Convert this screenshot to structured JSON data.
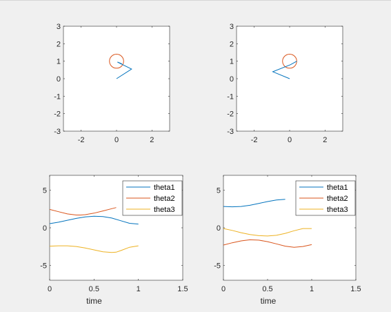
{
  "colors": {
    "figure_bg": "#f0f0f0",
    "axes_bg": "#ffffff",
    "axes_line": "#262626",
    "series_blue": "#0072bd",
    "series_orange": "#d95319",
    "series_yellow": "#edb120"
  },
  "chart_data": [
    {
      "type": "line",
      "title": "",
      "xlabel": "",
      "ylabel": "",
      "xlim": [
        -3,
        3
      ],
      "ylim": [
        -3,
        3
      ],
      "xticks": [
        -2,
        0,
        2
      ],
      "yticks": [
        -3,
        -2,
        -1,
        0,
        1,
        2,
        3
      ],
      "xtick_labels": [
        "-2",
        "0",
        "2"
      ],
      "ytick_labels": [
        "-3",
        "-2",
        "-1",
        "0",
        "1",
        "2",
        "3"
      ],
      "grid": false,
      "series": [
        {
          "x": [
            0,
            0.85,
            0.05,
            0.3
          ],
          "y": [
            0,
            0.55,
            0.95,
            0.85
          ],
          "color": "#0072bd"
        }
      ],
      "circles": [
        {
          "cx": 0,
          "cy": 1,
          "r": 0.4,
          "color": "#d95319"
        }
      ]
    },
    {
      "type": "line",
      "title": "",
      "xlabel": "",
      "ylabel": "",
      "xlim": [
        -3,
        3
      ],
      "ylim": [
        -3,
        3
      ],
      "xticks": [
        -2,
        0,
        2
      ],
      "yticks": [
        -3,
        -2,
        -1,
        0,
        1,
        2,
        3
      ],
      "xtick_labels": [
        "-2",
        "0",
        "2"
      ],
      "ytick_labels": [
        "-3",
        "-2",
        "-1",
        "0",
        "1",
        "2",
        "3"
      ],
      "grid": false,
      "series": [
        {
          "x": [
            0,
            -0.95,
            0.05,
            0.4
          ],
          "y": [
            0,
            0.4,
            0.8,
            1.0
          ],
          "color": "#0072bd"
        }
      ],
      "circles": [
        {
          "cx": 0,
          "cy": 1,
          "r": 0.4,
          "color": "#d95319"
        }
      ]
    },
    {
      "type": "line",
      "title": "",
      "xlabel": "time",
      "ylabel": "",
      "xlim": [
        0,
        1.5
      ],
      "ylim": [
        -7,
        7
      ],
      "xticks": [
        0,
        0.5,
        1,
        1.5
      ],
      "yticks": [
        -5,
        0,
        5
      ],
      "xtick_labels": [
        "0",
        "0.5",
        "1",
        "1.5"
      ],
      "ytick_labels": [
        "-5",
        "0",
        "5"
      ],
      "grid": false,
      "legend": {
        "location": "top-right"
      },
      "series": [
        {
          "name": "theta1",
          "color": "#0072bd",
          "x": [
            0,
            0.1,
            0.2,
            0.3,
            0.4,
            0.5,
            0.6,
            0.7,
            0.8,
            0.9,
            1.0
          ],
          "y": [
            0.55,
            0.75,
            1.0,
            1.25,
            1.45,
            1.55,
            1.5,
            1.3,
            0.95,
            0.6,
            0.5
          ]
        },
        {
          "name": "theta2",
          "color": "#d95319",
          "x": [
            0,
            0.1,
            0.2,
            0.3,
            0.35,
            0.4,
            0.5,
            0.6,
            0.7,
            0.75
          ],
          "y": [
            2.45,
            2.15,
            1.85,
            1.7,
            1.7,
            1.75,
            1.95,
            2.25,
            2.55,
            2.7
          ]
        },
        {
          "name": "theta3",
          "color": "#edb120",
          "x": [
            0,
            0.1,
            0.2,
            0.3,
            0.4,
            0.5,
            0.6,
            0.7,
            0.75,
            0.8,
            0.9,
            1.0
          ],
          "y": [
            -2.45,
            -2.4,
            -2.4,
            -2.5,
            -2.7,
            -2.95,
            -3.2,
            -3.3,
            -3.25,
            -3.05,
            -2.6,
            -2.4
          ]
        }
      ]
    },
    {
      "type": "line",
      "title": "",
      "xlabel": "time",
      "ylabel": "",
      "xlim": [
        0,
        1.5
      ],
      "ylim": [
        -7,
        7
      ],
      "xticks": [
        0,
        0.5,
        1,
        1.5
      ],
      "yticks": [
        -5,
        0,
        5
      ],
      "xtick_labels": [
        "0",
        "0.5",
        "1",
        "1.5"
      ],
      "ytick_labels": [
        "-5",
        "0",
        "5"
      ],
      "grid": false,
      "legend": {
        "location": "top-right"
      },
      "series": [
        {
          "name": "theta1",
          "color": "#0072bd",
          "x": [
            0,
            0.1,
            0.2,
            0.3,
            0.4,
            0.5,
            0.6,
            0.7
          ],
          "y": [
            2.85,
            2.8,
            2.85,
            3.0,
            3.25,
            3.5,
            3.7,
            3.8
          ]
        },
        {
          "name": "theta2",
          "color": "#d95319",
          "x": [
            0,
            0.1,
            0.2,
            0.3,
            0.4,
            0.5,
            0.6,
            0.7,
            0.8,
            0.9,
            1.0
          ],
          "y": [
            -2.3,
            -2.0,
            -1.75,
            -1.6,
            -1.65,
            -1.85,
            -2.15,
            -2.45,
            -2.6,
            -2.5,
            -2.25
          ]
        },
        {
          "name": "theta3",
          "color": "#edb120",
          "x": [
            0,
            0.1,
            0.2,
            0.3,
            0.4,
            0.5,
            0.6,
            0.7,
            0.8,
            0.9,
            1.0
          ],
          "y": [
            -0.1,
            -0.35,
            -0.65,
            -0.9,
            -1.05,
            -1.1,
            -1.0,
            -0.75,
            -0.4,
            -0.1,
            -0.1
          ]
        }
      ]
    }
  ]
}
